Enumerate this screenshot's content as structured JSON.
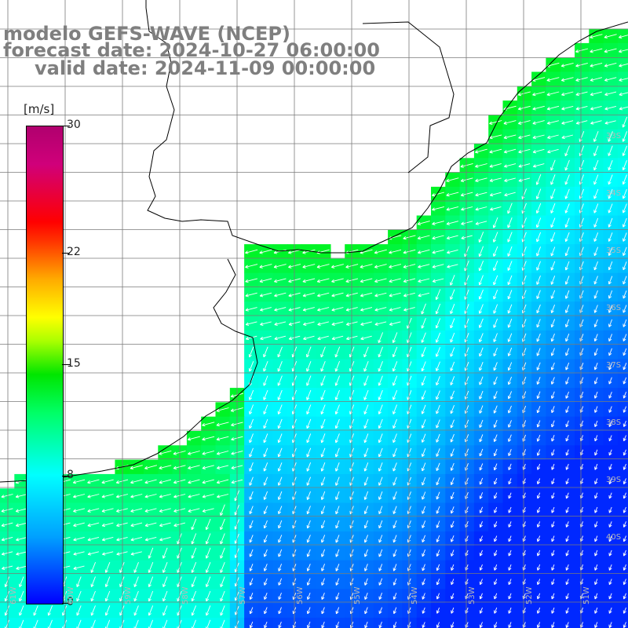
{
  "title": {
    "line1": "modelo GEFS-WAVE (NCEP)",
    "line2": "forecast date: 2024-10-27 06:00:00",
    "line3": "valid date: 2024-11-09 00:00:00"
  },
  "colorbar": {
    "units": "[m/s]",
    "ticks": [
      {
        "label": "30",
        "value": 30
      },
      {
        "label": "22",
        "value": 22
      },
      {
        "label": "15",
        "value": 15
      },
      {
        "label": "8",
        "value": 8
      },
      {
        "label": "0",
        "value": 0
      }
    ],
    "colors": [
      "#0000ff",
      "#00a0ff",
      "#00ffff",
      "#00ff66",
      "#00e600",
      "#ffff00",
      "#ff0000",
      "#b0006e"
    ]
  },
  "map": {
    "lat_labels": [
      "33S",
      "34S",
      "35S",
      "36S",
      "37S",
      "38S",
      "39S",
      "40S"
    ],
    "lon_labels": [
      "61W",
      "60W",
      "59W",
      "58W",
      "57W",
      "56W",
      "55W",
      "54W",
      "53W",
      "52W",
      "51W"
    ],
    "field": "wind speed with direction arrows",
    "colors": {
      "land": "#ffffff",
      "coast": "#000000",
      "grid": "#808080",
      "arrow": "#ffffff"
    }
  }
}
